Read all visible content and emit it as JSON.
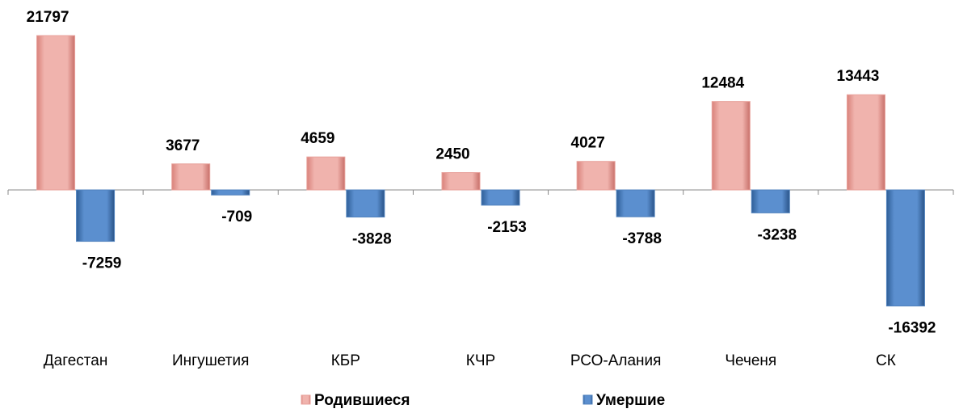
{
  "chart_data": {
    "type": "bar",
    "categories": [
      "Дагестан",
      "Ингушетия",
      "КБР",
      "КЧР",
      "РСО-Алания",
      "Чеченя",
      "СК"
    ],
    "series": [
      {
        "name": "Родившиеся",
        "color": "#e8a19b",
        "values": [
          21797,
          3677,
          4659,
          2450,
          4027,
          12484,
          13443
        ]
      },
      {
        "name": "Умершие",
        "color": "#4f81bd",
        "values": [
          -7259,
          -709,
          -3828,
          -2153,
          -3788,
          -3238,
          -16392
        ]
      }
    ],
    "legend": "bottom"
  }
}
